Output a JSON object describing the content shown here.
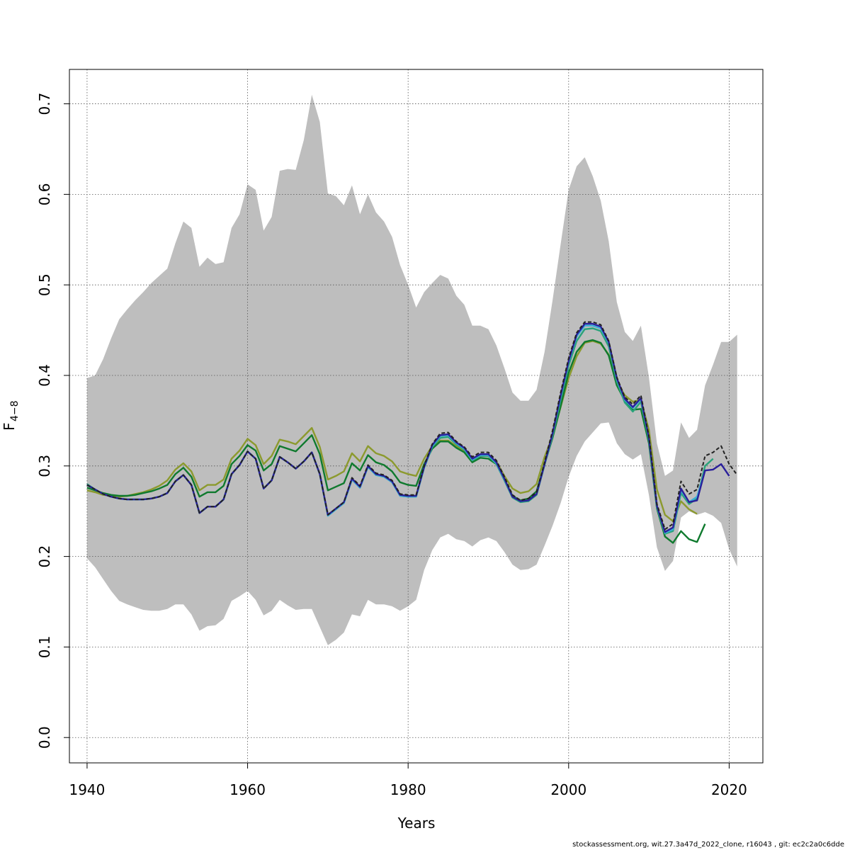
{
  "chart_data": {
    "type": "line",
    "title": "",
    "xlabel": "Years",
    "ylabel_base": "F",
    "ylabel_sub": "4−8",
    "xlim": [
      1937.8,
      2024.2
    ],
    "ylim": [
      -0.028,
      0.738
    ],
    "x_ticks": [
      "1940",
      "1960",
      "1980",
      "2000",
      "2020"
    ],
    "x_tick_values": [
      1940,
      1960,
      1980,
      2000,
      2020
    ],
    "y_ticks": [
      "0.0",
      "0.1",
      "0.2",
      "0.3",
      "0.4",
      "0.5",
      "0.6",
      "0.7"
    ],
    "y_tick_values": [
      0.0,
      0.1,
      0.2,
      0.3,
      0.4,
      0.5,
      0.6,
      0.7
    ],
    "grid": true,
    "band": {
      "name": "confidence interval",
      "color": "#bebebe",
      "x": [
        1940,
        1941,
        1942,
        1943,
        1944,
        1945,
        1946,
        1947,
        1948,
        1949,
        1950,
        1951,
        1952,
        1953,
        1954,
        1955,
        1956,
        1957,
        1958,
        1959,
        1960,
        1961,
        1962,
        1963,
        1964,
        1965,
        1966,
        1967,
        1968,
        1969,
        1970,
        1971,
        1972,
        1973,
        1974,
        1975,
        1976,
        1977,
        1978,
        1979,
        1980,
        1981,
        1982,
        1983,
        1984,
        1985,
        1986,
        1987,
        1988,
        1989,
        1990,
        1991,
        1992,
        1993,
        1994,
        1995,
        1996,
        1997,
        1998,
        1999,
        2000,
        2001,
        2002,
        2003,
        2004,
        2005,
        2006,
        2007,
        2008,
        2009,
        2010,
        2011,
        2012,
        2013,
        2014,
        2015,
        2016,
        2017,
        2018,
        2019,
        2020,
        2021
      ],
      "upper": [
        0.397,
        0.4,
        0.418,
        0.441,
        0.462,
        0.473,
        0.483,
        0.492,
        0.502,
        0.51,
        0.518,
        0.546,
        0.57,
        0.563,
        0.52,
        0.53,
        0.523,
        0.525,
        0.563,
        0.578,
        0.611,
        0.605,
        0.56,
        0.575,
        0.626,
        0.628,
        0.627,
        0.66,
        0.71,
        0.68,
        0.601,
        0.598,
        0.588,
        0.61,
        0.578,
        0.6,
        0.58,
        0.57,
        0.553,
        0.522,
        0.5,
        0.475,
        0.492,
        0.502,
        0.511,
        0.507,
        0.488,
        0.478,
        0.455,
        0.455,
        0.451,
        0.433,
        0.408,
        0.381,
        0.372,
        0.372,
        0.384,
        0.426,
        0.483,
        0.545,
        0.605,
        0.631,
        0.641,
        0.62,
        0.593,
        0.548,
        0.481,
        0.448,
        0.438,
        0.455,
        0.398,
        0.325,
        0.289,
        0.295,
        0.348,
        0.331,
        0.34,
        0.389,
        0.412,
        0.437,
        0.437,
        0.445
      ],
      "lower": [
        0.198,
        0.188,
        0.175,
        0.162,
        0.151,
        0.147,
        0.144,
        0.141,
        0.14,
        0.14,
        0.142,
        0.147,
        0.147,
        0.136,
        0.118,
        0.123,
        0.124,
        0.131,
        0.151,
        0.156,
        0.162,
        0.152,
        0.135,
        0.14,
        0.152,
        0.146,
        0.141,
        0.142,
        0.142,
        0.122,
        0.102,
        0.108,
        0.116,
        0.136,
        0.134,
        0.152,
        0.147,
        0.147,
        0.145,
        0.14,
        0.145,
        0.152,
        0.185,
        0.207,
        0.221,
        0.225,
        0.219,
        0.217,
        0.211,
        0.218,
        0.221,
        0.217,
        0.205,
        0.191,
        0.185,
        0.186,
        0.191,
        0.212,
        0.234,
        0.259,
        0.288,
        0.311,
        0.327,
        0.337,
        0.347,
        0.348,
        0.325,
        0.313,
        0.307,
        0.313,
        0.268,
        0.21,
        0.184,
        0.195,
        0.243,
        0.25,
        0.246,
        0.249,
        0.245,
        0.237,
        0.208,
        0.189
      ]
    },
    "series": [
      {
        "name": "olive",
        "color": "#8c9a2e",
        "start": 1940,
        "values": [
          0.273,
          0.271,
          0.268,
          0.267,
          0.266,
          0.267,
          0.269,
          0.271,
          0.274,
          0.278,
          0.284,
          0.296,
          0.303,
          0.294,
          0.273,
          0.279,
          0.279,
          0.285,
          0.308,
          0.317,
          0.33,
          0.323,
          0.302,
          0.311,
          0.329,
          0.327,
          0.324,
          0.333,
          0.342,
          0.321,
          0.285,
          0.289,
          0.294,
          0.314,
          0.305,
          0.322,
          0.314,
          0.311,
          0.305,
          0.294,
          0.291,
          0.289,
          0.308,
          0.322,
          0.328,
          0.328,
          0.322,
          0.317,
          0.306,
          0.311,
          0.311,
          0.305,
          0.289,
          0.275,
          0.27,
          0.272,
          0.28,
          0.31,
          0.333,
          0.365,
          0.397,
          0.421,
          0.436,
          0.438,
          0.435,
          0.423,
          0.393,
          0.378,
          0.371,
          0.373,
          0.34,
          0.274,
          0.246,
          0.239,
          0.261,
          0.252,
          0.247
        ]
      },
      {
        "name": "dark green",
        "color": "#0f7a2e",
        "start": 1940,
        "values": [
          0.276,
          0.273,
          0.27,
          0.268,
          0.267,
          0.267,
          0.268,
          0.27,
          0.272,
          0.275,
          0.279,
          0.291,
          0.298,
          0.288,
          0.266,
          0.271,
          0.271,
          0.278,
          0.302,
          0.311,
          0.323,
          0.317,
          0.295,
          0.302,
          0.322,
          0.319,
          0.316,
          0.325,
          0.334,
          0.313,
          0.273,
          0.277,
          0.281,
          0.303,
          0.295,
          0.312,
          0.304,
          0.301,
          0.294,
          0.282,
          0.279,
          0.278,
          0.302,
          0.319,
          0.327,
          0.327,
          0.32,
          0.315,
          0.304,
          0.309,
          0.308,
          0.302,
          0.285,
          0.267,
          0.262,
          0.264,
          0.272,
          0.302,
          0.331,
          0.366,
          0.403,
          0.426,
          0.437,
          0.439,
          0.436,
          0.422,
          0.389,
          0.372,
          0.362,
          0.363,
          0.325,
          0.253,
          0.222,
          0.215,
          0.228,
          0.219,
          0.216,
          0.236
        ]
      },
      {
        "name": "teal green",
        "color": "#2aa37a",
        "start": 1940,
        "values": [
          0.28,
          0.274,
          0.269,
          0.266,
          0.264,
          0.263,
          0.263,
          0.263,
          0.264,
          0.266,
          0.27,
          0.283,
          0.29,
          0.279,
          0.248,
          0.255,
          0.255,
          0.263,
          0.291,
          0.301,
          0.316,
          0.308,
          0.275,
          0.284,
          0.31,
          0.304,
          0.297,
          0.305,
          0.315,
          0.291,
          0.245,
          0.252,
          0.259,
          0.285,
          0.276,
          0.299,
          0.29,
          0.288,
          0.282,
          0.267,
          0.266,
          0.266,
          0.298,
          0.321,
          0.331,
          0.332,
          0.324,
          0.318,
          0.306,
          0.311,
          0.311,
          0.302,
          0.284,
          0.265,
          0.26,
          0.261,
          0.268,
          0.301,
          0.333,
          0.373,
          0.411,
          0.438,
          0.451,
          0.452,
          0.449,
          0.432,
          0.393,
          0.37,
          0.36,
          0.371,
          0.328,
          0.254,
          0.225,
          0.228,
          0.27,
          0.258,
          0.264,
          0.3,
          0.308
        ]
      },
      {
        "name": "sky blue",
        "color": "#3aaed8",
        "start": 1940,
        "values": [
          0.279,
          0.274,
          0.269,
          0.266,
          0.264,
          0.263,
          0.263,
          0.263,
          0.264,
          0.266,
          0.27,
          0.283,
          0.29,
          0.279,
          0.248,
          0.255,
          0.255,
          0.263,
          0.291,
          0.301,
          0.316,
          0.308,
          0.275,
          0.284,
          0.31,
          0.304,
          0.297,
          0.305,
          0.315,
          0.291,
          0.245,
          0.252,
          0.259,
          0.285,
          0.276,
          0.299,
          0.29,
          0.288,
          0.282,
          0.267,
          0.266,
          0.266,
          0.298,
          0.322,
          0.333,
          0.334,
          0.325,
          0.319,
          0.307,
          0.312,
          0.312,
          0.303,
          0.285,
          0.266,
          0.261,
          0.262,
          0.269,
          0.302,
          0.336,
          0.377,
          0.415,
          0.443,
          0.455,
          0.455,
          0.452,
          0.436,
          0.396,
          0.373,
          0.364,
          0.374,
          0.331,
          0.256,
          0.226,
          0.23,
          0.273,
          0.26,
          0.266,
          0.295
        ]
      },
      {
        "name": "navy",
        "color": "#2a1f9a",
        "start": 1940,
        "values": [
          0.279,
          0.274,
          0.269,
          0.266,
          0.264,
          0.263,
          0.263,
          0.263,
          0.264,
          0.266,
          0.27,
          0.283,
          0.29,
          0.279,
          0.248,
          0.255,
          0.255,
          0.263,
          0.291,
          0.301,
          0.316,
          0.308,
          0.275,
          0.284,
          0.31,
          0.304,
          0.297,
          0.305,
          0.315,
          0.291,
          0.246,
          0.253,
          0.26,
          0.286,
          0.277,
          0.3,
          0.291,
          0.289,
          0.283,
          0.268,
          0.267,
          0.267,
          0.299,
          0.323,
          0.334,
          0.335,
          0.326,
          0.32,
          0.308,
          0.313,
          0.313,
          0.304,
          0.286,
          0.266,
          0.261,
          0.262,
          0.269,
          0.302,
          0.336,
          0.378,
          0.416,
          0.445,
          0.457,
          0.457,
          0.454,
          0.437,
          0.397,
          0.374,
          0.365,
          0.375,
          0.331,
          0.256,
          0.227,
          0.232,
          0.275,
          0.26,
          0.262,
          0.295,
          0.296,
          0.302,
          0.289
        ]
      },
      {
        "name": "black",
        "color": "#222222",
        "start": 1940,
        "values": [
          0.279,
          0.274,
          0.269,
          0.266,
          0.264,
          0.263,
          0.263,
          0.263,
          0.264,
          0.266,
          0.27,
          0.283,
          0.29,
          0.279,
          0.248,
          0.255,
          0.255,
          0.263,
          0.291,
          0.301,
          0.316,
          0.308,
          0.275,
          0.284,
          0.31,
          0.304,
          0.297,
          0.305,
          0.315,
          0.291,
          0.246,
          0.253,
          0.26,
          0.287,
          0.278,
          0.301,
          0.292,
          0.29,
          0.284,
          0.269,
          0.268,
          0.268,
          0.3,
          0.324,
          0.336,
          0.337,
          0.327,
          0.321,
          0.31,
          0.315,
          0.315,
          0.306,
          0.288,
          0.268,
          0.262,
          0.264,
          0.271,
          0.304,
          0.339,
          0.381,
          0.419,
          0.447,
          0.459,
          0.459,
          0.456,
          0.438,
          0.398,
          0.376,
          0.368,
          0.378,
          0.333,
          0.258,
          0.23,
          0.236,
          0.283,
          0.269,
          0.274,
          0.311,
          0.315,
          0.322,
          0.302,
          0.29
        ]
      }
    ]
  },
  "footer": "stockassessment.org, wit.27.3a47d_2022_clone, r16043 , git: ec2c2a0c6dde"
}
